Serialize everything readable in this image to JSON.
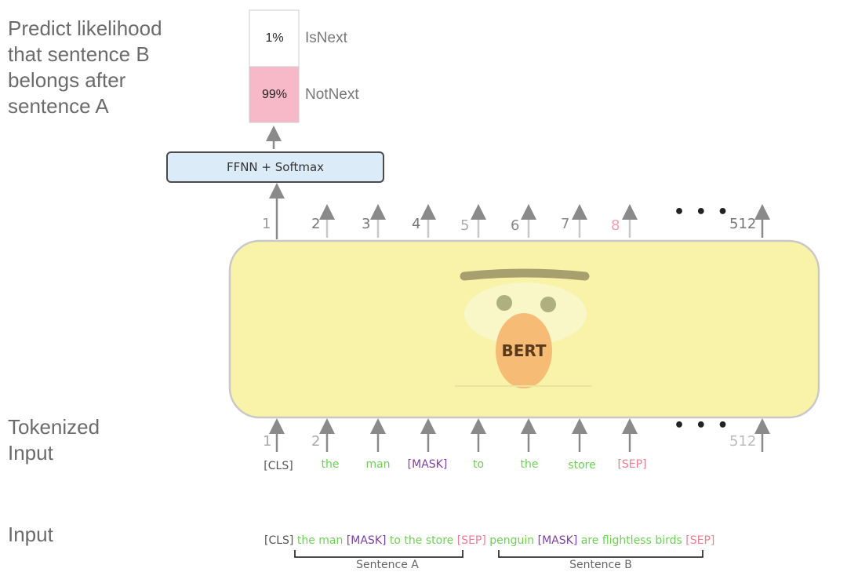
{
  "side_labels": {
    "predict": "Predict likelihood that sentence B belongs after sentence A",
    "tokenized": "Tokenized Input",
    "input": "Input"
  },
  "output": {
    "isnext_pct": "1%",
    "isnext_label": "IsNext",
    "notnext_pct": "99%",
    "notnext_label": "NotNext"
  },
  "ffnn_label": "FFNN + Softmax",
  "model_label": "BERT",
  "positions": [
    "1",
    "2",
    "3",
    "4",
    "5",
    "6",
    "7",
    "8"
  ],
  "position_last": "512",
  "ellipsis": "• • •",
  "tokens": [
    {
      "text": "[CLS]",
      "color": "gray"
    },
    {
      "text": "the",
      "color": "green"
    },
    {
      "text": "man",
      "color": "green"
    },
    {
      "text": "[MASK]",
      "color": "purple"
    },
    {
      "text": "to",
      "color": "green"
    },
    {
      "text": "the",
      "color": "green"
    },
    {
      "text": "store",
      "color": "green"
    },
    {
      "text": "[SEP]",
      "color": "pink"
    }
  ],
  "input_sequence": [
    {
      "text": "[CLS]",
      "color": "gray"
    },
    {
      "text": "the man",
      "color": "green"
    },
    {
      "text": "[MASK]",
      "color": "purple"
    },
    {
      "text": "to the store",
      "color": "green"
    },
    {
      "text": "[SEP]",
      "color": "pink"
    },
    {
      "text": "penguin",
      "color": "green"
    },
    {
      "text": "[MASK]",
      "color": "purple"
    },
    {
      "text": "are flightless birds",
      "color": "green"
    },
    {
      "text": "[SEP]",
      "color": "pink"
    }
  ],
  "sentence_a_label": "Sentence A",
  "sentence_b_label": "Sentence B",
  "colors": {
    "gray": "#555555",
    "green": "#6fcf57",
    "purple": "#7b3fa6",
    "pink": "#f07a90",
    "bert_body": "#f8f3a8",
    "ffnn_fill": "#dcebf8",
    "notnext_fill": "#f7b8c8"
  }
}
